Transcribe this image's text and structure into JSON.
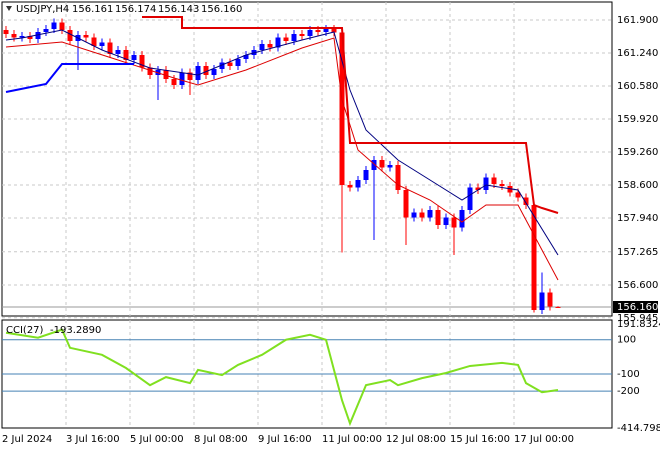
{
  "chart_data": [
    {
      "type": "candlestick",
      "title": "USDJPY,H4",
      "header_values": [
        "156.161",
        "156.174",
        "156.143",
        "156.160"
      ],
      "categories": [
        "2 Jul 2024",
        null,
        null,
        null,
        null,
        null,
        null,
        null,
        "3 Jul 16:00",
        null,
        null,
        null,
        null,
        null,
        null,
        null,
        "5 Jul 00:00",
        null,
        null,
        null,
        null,
        null,
        null,
        null,
        "8 Jul 08:00",
        null,
        null,
        null,
        null,
        null,
        null,
        null,
        "9 Jul 16:00",
        null,
        null,
        null,
        null,
        null,
        null,
        null,
        "11 Jul 00:00",
        null,
        null,
        null,
        null,
        null,
        null,
        null,
        "12 Jul 08:00",
        null,
        null,
        null,
        null,
        null,
        null,
        null,
        "15 Jul 16:00",
        null,
        null,
        null,
        null,
        null,
        null,
        null,
        "17 Jul 00:00",
        null,
        null,
        null,
        null,
        null
      ],
      "open": [
        161.7,
        161.62,
        161.55,
        161.58,
        161.52,
        161.66,
        161.72,
        161.85,
        161.7,
        161.48,
        161.6,
        161.55,
        161.38,
        161.45,
        161.22,
        161.3,
        161.1,
        161.2,
        160.95,
        160.8,
        160.9,
        160.72,
        160.6,
        160.85,
        160.7,
        160.98,
        160.8,
        160.92,
        161.05,
        160.98,
        161.12,
        161.2,
        161.3,
        161.42,
        161.35,
        161.55,
        161.48,
        161.62,
        161.58,
        161.7,
        161.66,
        161.72,
        161.65,
        158.6,
        158.55,
        158.7,
        158.9,
        159.1,
        158.95,
        159.0,
        158.5,
        157.95,
        158.05,
        157.95,
        158.1,
        157.8,
        157.95,
        157.75,
        158.1,
        158.55,
        158.5,
        158.75,
        158.62,
        158.58,
        158.45,
        158.35,
        158.2,
        156.1,
        156.45,
        156.161
      ],
      "high": [
        161.78,
        161.7,
        161.66,
        161.66,
        161.74,
        161.8,
        161.93,
        161.93,
        161.78,
        161.68,
        161.68,
        161.63,
        161.53,
        161.53,
        161.38,
        161.38,
        161.28,
        161.28,
        161.03,
        160.98,
        160.98,
        160.8,
        160.93,
        160.93,
        161.06,
        161.06,
        161.0,
        161.13,
        161.13,
        161.2,
        161.28,
        161.38,
        161.5,
        161.5,
        161.63,
        161.63,
        161.7,
        161.7,
        161.78,
        161.78,
        161.8,
        161.8,
        161.73,
        158.68,
        158.78,
        158.98,
        159.18,
        159.18,
        159.08,
        159.08,
        158.58,
        158.13,
        158.13,
        158.18,
        158.18,
        158.03,
        158.03,
        158.18,
        158.63,
        158.63,
        158.83,
        158.83,
        158.7,
        158.66,
        158.53,
        158.43,
        158.28,
        156.85,
        156.53,
        156.174
      ],
      "low": [
        161.54,
        161.47,
        161.47,
        161.44,
        161.44,
        161.58,
        161.64,
        161.62,
        161.4,
        160.9,
        161.47,
        161.3,
        161.3,
        161.14,
        161.14,
        161.02,
        161.02,
        160.87,
        160.72,
        160.3,
        160.64,
        160.52,
        160.52,
        160.4,
        160.62,
        160.72,
        160.72,
        160.84,
        160.9,
        160.9,
        161.04,
        161.12,
        161.22,
        161.27,
        161.27,
        161.4,
        161.4,
        161.5,
        161.5,
        161.58,
        161.58,
        161.57,
        157.25,
        158.47,
        158.47,
        158.62,
        157.5,
        158.87,
        158.87,
        158.42,
        157.4,
        157.87,
        157.87,
        157.87,
        157.72,
        157.72,
        157.2,
        157.67,
        158.02,
        158.42,
        158.42,
        158.54,
        158.5,
        158.37,
        158.27,
        158.12,
        156.05,
        156.02,
        156.09,
        156.143
      ],
      "close": [
        161.62,
        161.55,
        161.58,
        161.52,
        161.66,
        161.72,
        161.85,
        161.7,
        161.48,
        161.6,
        161.55,
        161.38,
        161.45,
        161.22,
        161.3,
        161.1,
        161.2,
        160.95,
        160.8,
        160.9,
        160.72,
        160.6,
        160.85,
        160.7,
        160.98,
        160.8,
        160.92,
        161.05,
        160.98,
        161.12,
        161.2,
        161.3,
        161.42,
        161.35,
        161.55,
        161.48,
        161.62,
        161.58,
        161.7,
        161.66,
        161.72,
        161.65,
        158.6,
        158.55,
        158.7,
        158.9,
        159.1,
        158.95,
        159.0,
        158.5,
        157.95,
        158.05,
        157.95,
        158.1,
        157.8,
        157.95,
        157.75,
        158.1,
        158.55,
        158.5,
        158.75,
        158.62,
        158.58,
        158.45,
        158.35,
        158.2,
        156.1,
        156.45,
        156.17,
        156.16
      ],
      "up_color": "#0000ff",
      "down_color": "#ff0000",
      "lines": [
        {
          "color": "#000080",
          "width": 1,
          "x": [
            0,
            2,
            7,
            12,
            18,
            24,
            30,
            37,
            41,
            43,
            45,
            49,
            53,
            57,
            60,
            64,
            69
          ],
          "values": [
            161.5,
            161.54,
            161.7,
            161.3,
            160.94,
            160.8,
            161.2,
            161.5,
            161.66,
            160.5,
            159.7,
            159.1,
            158.7,
            158.3,
            158.6,
            158.5,
            157.2
          ]
        },
        {
          "color": "#dd0000",
          "width": 1,
          "x": [
            0,
            7,
            14,
            21,
            24,
            30,
            37,
            41,
            42,
            44,
            49,
            53,
            57,
            60,
            64,
            67,
            69
          ],
          "values": [
            161.36,
            161.46,
            161.1,
            160.74,
            160.6,
            160.9,
            161.34,
            161.54,
            160.3,
            159.3,
            158.6,
            158.3,
            157.86,
            158.2,
            158.2,
            157.3,
            156.7
          ]
        },
        {
          "color": "#0000ff",
          "width": 2,
          "x": [
            0,
            5,
            7,
            16
          ],
          "values": [
            160.46,
            160.62,
            161.02,
            161.02
          ]
        },
        {
          "color": "#e00000",
          "width": 2,
          "x": [
            17,
            22,
            22,
            42,
            43,
            65,
            66,
            67,
            69
          ],
          "values": [
            161.96,
            161.96,
            161.74,
            161.74,
            159.44,
            159.44,
            158.2,
            158.14,
            158.04
          ]
        }
      ],
      "ylim": [
        155.98,
        162.26
      ],
      "yticks": [
        {
          "value": 161.9,
          "label": "161.900"
        },
        {
          "value": 161.24,
          "label": "161.240"
        },
        {
          "value": 160.58,
          "label": "160.580"
        },
        {
          "value": 159.92,
          "label": "159.920"
        },
        {
          "value": 159.26,
          "label": "159.260"
        },
        {
          "value": 158.6,
          "label": "158.600"
        },
        {
          "value": 157.94,
          "label": "157.940"
        },
        {
          "value": 157.265,
          "label": "157.265"
        },
        {
          "value": 156.6,
          "label": "156.600"
        },
        {
          "value": 155.945,
          "label": "155.945"
        }
      ],
      "current_price": {
        "value": 156.16,
        "label": "156.160"
      },
      "grid": true
    },
    {
      "type": "line",
      "title": "CCI(27)",
      "last_value": {
        "value": -193.289,
        "label": "-193.2890"
      },
      "color": "#80e020",
      "x": [
        0,
        4,
        7,
        8,
        12,
        15,
        18,
        20,
        23,
        24,
        27,
        29,
        32,
        35,
        38,
        40,
        42,
        43,
        45,
        48,
        49,
        52,
        55,
        58,
        62,
        64,
        65,
        67,
        69
      ],
      "values": [
        141,
        112,
        159,
        53,
        12,
        -65,
        -165,
        -118,
        -153,
        -76,
        -106,
        -47,
        12,
        100,
        129,
        100,
        -253,
        -388,
        -165,
        -135,
        -165,
        -124,
        -94,
        -53,
        -35,
        -47,
        -153,
        -206,
        -193.289
      ],
      "ylim": [
        -414.7988,
        191.8324
      ],
      "yticks": [
        {
          "value": 191.8324,
          "label": "191.8324"
        },
        100,
        -100,
        -200,
        {
          "value": -414.7988,
          "label": "-414.7988"
        }
      ],
      "levels": [
        100,
        -100,
        -200
      ],
      "level_color": "#4682b4"
    }
  ]
}
